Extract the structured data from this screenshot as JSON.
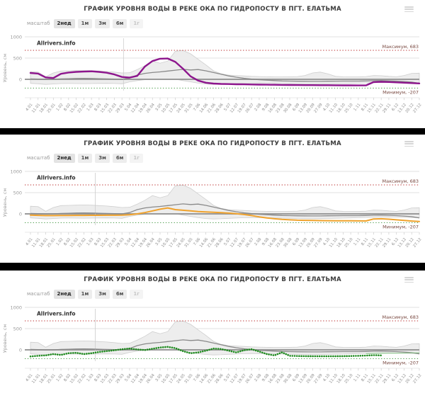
{
  "shared": {
    "title": "ГРАФИК УРОВНЯ ВОДЫ В РЕКЕ ОКА ПО ГИДРОПОСТУ В ПГТ. ЕЛАТЬМА",
    "watermark": "Allrivers.info",
    "icons": {
      "menu": "hamburger-icon"
    },
    "controls": {
      "label": "масштаб",
      "buttons": [
        {
          "name": "scale-button-2week",
          "label": "2нед",
          "state": "active"
        },
        {
          "name": "scale-button-1month",
          "label": "1м",
          "state": "normal"
        },
        {
          "name": "scale-button-3month",
          "label": "3м",
          "state": "normal"
        },
        {
          "name": "scale-button-6month",
          "label": "6м",
          "state": "normal"
        },
        {
          "name": "scale-button-1year",
          "label": "1г",
          "state": "disabled"
        }
      ]
    },
    "colors": {
      "panel1_line": "#8d168d",
      "panel2_line": "#f0a22c",
      "panel3_line": "#1f8b1f",
      "max_line": "#c04040",
      "min_line": "#57a257",
      "band_fill": "#ededed",
      "mean_line": "#8a8a8a"
    }
  },
  "panels": [
    {
      "series": "panel1_water_level",
      "tail": null,
      "today_week": 12.2,
      "dotted": false,
      "width": 2.4
    },
    {
      "series": "panel2_water_level",
      "tail": null,
      "today_week": 8.5,
      "dotted": false,
      "width": 2.0
    },
    {
      "series": "panel3_water_level",
      "tail": "panel3_water_level_tail",
      "today_week": 8.5,
      "dotted": true,
      "width": 2.6
    }
  ],
  "chart_data": {
    "type": "line",
    "title": "ГРАФИК УРОВНЯ ВОДЫ В РЕКЕ ОКА ПО ГИДРОПОСТУ В ПГТ. ЕЛАТЬМА",
    "ylabel": "Уровень, см",
    "ylim": [
      -450,
      1000
    ],
    "yticks": [
      1000,
      500,
      0
    ],
    "max_reference": {
      "label": "Максимум, 683",
      "value": 683
    },
    "min_reference": {
      "label": "Минимум, -207",
      "value": -207
    },
    "x_labels": [
      "4.01",
      "11.01",
      "18.01",
      "25.01",
      "1.02",
      "8.02",
      "15.02",
      "22.02",
      "1.03",
      "8.03",
      "15.03",
      "22.03",
      "29.03",
      "5.04",
      "12.04",
      "19.04",
      "26.04",
      "3.05",
      "10.05",
      "17.05",
      "24.05",
      "31.05",
      "7.06",
      "14.06",
      "21.06",
      "28.06",
      "5.07",
      "12.07",
      "19.07",
      "26.07",
      "2.08",
      "9.08",
      "16.08",
      "23.08",
      "30.08",
      "6.09",
      "13.09",
      "20.09",
      "27.09",
      "4.10",
      "11.10",
      "18.10",
      "25.10",
      "1.11",
      "8.11",
      "15.11",
      "22.11",
      "29.11",
      "6.12",
      "13.12",
      "20.12",
      "27.12"
    ],
    "series": [
      {
        "name": "historical_range_upper",
        "values": [
          180,
          170,
          60,
          150,
          195,
          200,
          205,
          210,
          205,
          195,
          185,
          170,
          150,
          155,
          230,
          320,
          430,
          380,
          430,
          660,
          680,
          600,
          470,
          340,
          200,
          130,
          100,
          90,
          80,
          70,
          65,
          60,
          58,
          58,
          60,
          65,
          90,
          150,
          170,
          130,
          70,
          60,
          58,
          58,
          65,
          90,
          85,
          70,
          60,
          90,
          140,
          145
        ]
      },
      {
        "name": "historical_range_lower",
        "values": [
          -95,
          -105,
          -120,
          -110,
          -100,
          -98,
          -100,
          -102,
          -100,
          -96,
          -95,
          -98,
          -105,
          -60,
          -30,
          -10,
          0,
          5,
          10,
          0,
          -30,
          -60,
          -90,
          -110,
          -120,
          -115,
          -105,
          -98,
          -92,
          -88,
          -86,
          -90,
          -95,
          -100,
          -104,
          -108,
          -112,
          -114,
          -112,
          -108,
          -104,
          -100,
          -95,
          -90,
          -85,
          -80,
          -75,
          -72,
          -76,
          -82,
          -88,
          -92
        ]
      },
      {
        "name": "historical_mean",
        "values": [
          10,
          5,
          -5,
          0,
          10,
          15,
          20,
          22,
          20,
          15,
          10,
          5,
          0,
          30,
          100,
          140,
          160,
          175,
          195,
          215,
          235,
          220,
          230,
          200,
          160,
          120,
          80,
          50,
          25,
          5,
          -10,
          -20,
          -30,
          -38,
          -42,
          -45,
          -47,
          -48,
          -48,
          -45,
          -43,
          -42,
          -42,
          -41,
          -38,
          -32,
          -30,
          -35,
          -42,
          -52,
          -65,
          -95
        ]
      },
      {
        "name": "panel1_water_level",
        "color": "#8d168d",
        "values": [
          150,
          135,
          45,
          30,
          130,
          160,
          175,
          182,
          188,
          175,
          155,
          115,
          55,
          40,
          80,
          300,
          430,
          485,
          490,
          410,
          250,
          70,
          -30,
          -80,
          -100,
          -108,
          -112,
          -116,
          -119,
          -122,
          -125,
          -127,
          -129,
          -131,
          -133,
          -135,
          -136,
          -137,
          -138,
          -139,
          -140,
          -141,
          -142,
          -143,
          -144,
          -65,
          -58,
          -64,
          -72,
          -80,
          -88,
          -96
        ]
      },
      {
        "name": "panel2_water_level",
        "color": "#f0a22c",
        "values": [
          -30,
          -35,
          -40,
          -40,
          -38,
          -36,
          -35,
          -35,
          -34,
          -33,
          -32,
          -32,
          -30,
          -20,
          0,
          30,
          70,
          110,
          140,
          100,
          85,
          70,
          55,
          45,
          38,
          30,
          18,
          5,
          -15,
          -40,
          -70,
          -95,
          -115,
          -130,
          -140,
          -148,
          -152,
          -155,
          -158,
          -160,
          -162,
          -163,
          -164,
          -165,
          -166,
          -120,
          -115,
          -125,
          -140,
          -155,
          -168,
          -178
        ]
      },
      {
        "name": "panel3_water_level",
        "color": "#1f8b1f",
        "values": [
          -155,
          -140,
          -130,
          -100,
          -120,
          -80,
          -70,
          -100,
          -80,
          -50,
          -30,
          -10,
          15,
          30,
          10,
          -5,
          25,
          55,
          70,
          40,
          -30,
          -80,
          -60,
          -20,
          30,
          20,
          -20,
          -60,
          -10,
          15,
          -40,
          -100,
          -130,
          -60,
          -140,
          -145,
          -148,
          -150,
          -150,
          -150,
          -150,
          -148,
          -145,
          -140,
          -135,
          -125,
          -130,
          null,
          null,
          null,
          null,
          null
        ]
      },
      {
        "name": "panel3_water_level_tail",
        "color": "#85c585",
        "start_index": 44,
        "values": [
          -90,
          -85,
          -82,
          -80,
          -78,
          -75,
          -72,
          -70
        ]
      }
    ]
  }
}
